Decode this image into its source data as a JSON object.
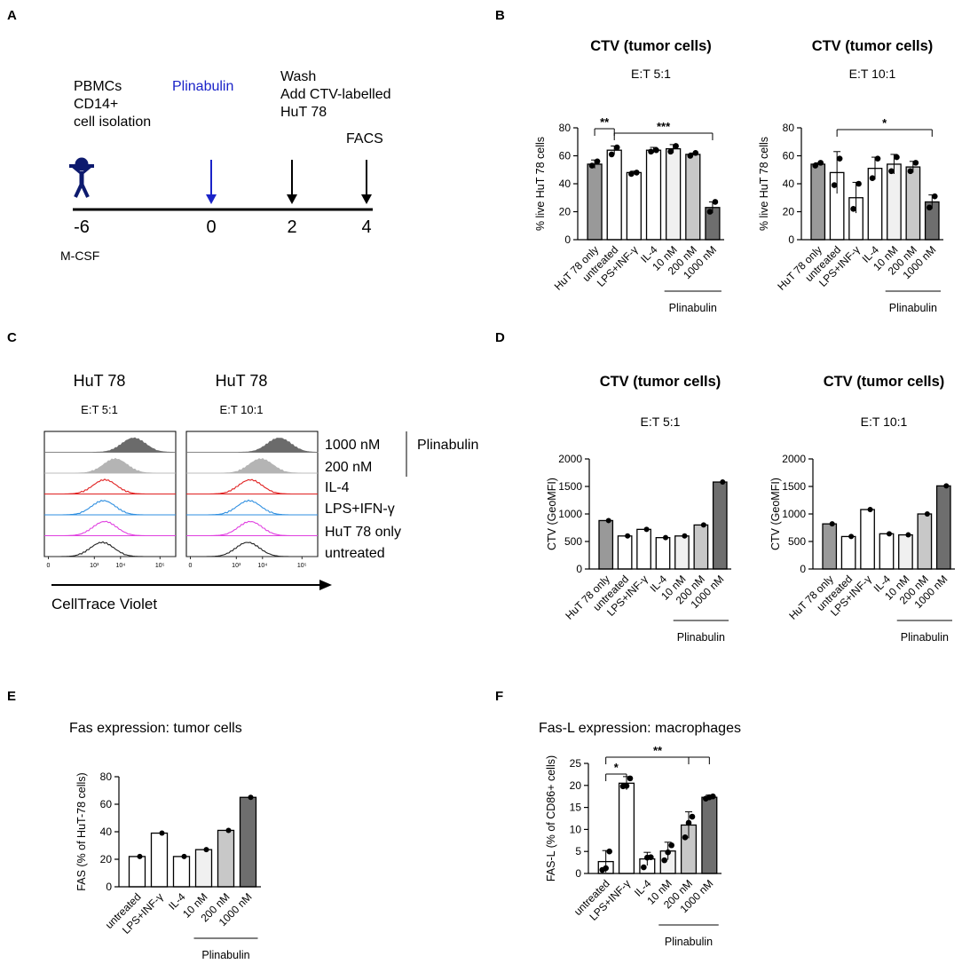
{
  "panels": {
    "A": {
      "letter": "A",
      "labels": {
        "step1": [
          "PBMCs",
          "CD14+",
          "cell isolation"
        ],
        "step2": "Plinabulin",
        "step3": [
          "Wash",
          "Add CTV-labelled",
          "HuT 78"
        ],
        "step4": "FACS",
        "mcsf": "M-CSF"
      },
      "timepoints": [
        "-6",
        "0",
        "2",
        "4"
      ],
      "colors": {
        "plinabulin": "#1a23c8",
        "person": "#0d1a6e"
      }
    },
    "B": {
      "letter": "B"
    },
    "C": {
      "letter": "C",
      "col_titles": [
        "HuT 78",
        "HuT 78"
      ],
      "ratios": [
        "E:T   5:1",
        "E:T   10:1"
      ],
      "legend": [
        "1000 nM",
        "200 nM",
        "IL-4",
        "LPS+IFN-γ",
        "HuT 78 only",
        "untreated"
      ],
      "legend_group": "Plinabulin",
      "xaxis_label": "CellTrace Violet",
      "tick_labels": [
        "0",
        "10³",
        "10⁴",
        "10⁵"
      ],
      "trace_colors": [
        "#6b6b6b",
        "#b4b4b4",
        "#e02020",
        "#2f8fe0",
        "#e040e0",
        "#222222"
      ]
    },
    "D": {
      "letter": "D"
    },
    "E": {
      "letter": "E"
    },
    "F": {
      "letter": "F"
    }
  },
  "chart_data": [
    {
      "id": "B1",
      "type": "bar",
      "title": "CTV (tumor cells)",
      "subtitle": "E:T   5:1",
      "ylabel": "% live HuT 78 cells",
      "xlabel": "",
      "categories": [
        "HuT 78 only",
        "untreated",
        "LPS+INF-γ",
        "IL-4",
        "10 nM",
        "200 nM",
        "1000 nM"
      ],
      "values": [
        54,
        64,
        48,
        64,
        65,
        61,
        23
      ],
      "errors": [
        3,
        3,
        1,
        2,
        3,
        1,
        4
      ],
      "points": [
        [
          53,
          56
        ],
        [
          61,
          66
        ],
        [
          47,
          48
        ],
        [
          63,
          64
        ],
        [
          63,
          67
        ],
        [
          60,
          62
        ],
        [
          20,
          27
        ]
      ],
      "fills": [
        "#999999",
        "#ffffff",
        "#ffffff",
        "#ffffff",
        "#f0f0f0",
        "#c8c8c8",
        "#6e6e6e"
      ],
      "ylim": [
        0,
        80
      ],
      "yticks": [
        0,
        20,
        40,
        60,
        80
      ],
      "group_label": "Plinabulin",
      "group_range": [
        4,
        6
      ],
      "sig": [
        {
          "from": 0,
          "to": 1,
          "label": "**"
        },
        {
          "from": 1,
          "to": 6,
          "label": "***"
        }
      ]
    },
    {
      "id": "B2",
      "type": "bar",
      "title": "CTV (tumor cells)",
      "subtitle": "E:T   10:1",
      "ylabel": "% live HuT 78 cells",
      "xlabel": "",
      "categories": [
        "HuT 78 only",
        "untreated",
        "LPS+INF-γ",
        "IL-4",
        "10 nM",
        "200 nM",
        "1000 nM"
      ],
      "values": [
        54,
        48,
        30,
        51,
        54,
        52,
        27
      ],
      "errors": [
        1,
        15,
        11,
        8,
        7,
        4,
        5
      ],
      "points": [
        [
          53,
          55
        ],
        [
          39,
          58
        ],
        [
          22,
          40
        ],
        [
          44,
          58
        ],
        [
          49,
          59
        ],
        [
          49,
          55
        ],
        [
          23,
          31
        ]
      ],
      "fills": [
        "#999999",
        "#ffffff",
        "#ffffff",
        "#ffffff",
        "#f0f0f0",
        "#c8c8c8",
        "#6e6e6e"
      ],
      "ylim": [
        0,
        80
      ],
      "yticks": [
        0,
        20,
        40,
        60,
        80
      ],
      "group_label": "Plinabulin",
      "group_range": [
        4,
        6
      ],
      "sig": [
        {
          "from": 1,
          "to": 6,
          "label": "*"
        }
      ]
    },
    {
      "id": "D1",
      "type": "bar",
      "title": "CTV (tumor cells)",
      "subtitle": "E:T   5:1",
      "ylabel": "CTV (GeoMFI)",
      "xlabel": "",
      "categories": [
        "HuT 78 only",
        "untreated",
        "LPS+INF-γ",
        "IL-4",
        "10 nM",
        "200 nM",
        "1000 nM"
      ],
      "values": [
        880,
        600,
        720,
        570,
        600,
        800,
        1580
      ],
      "fills": [
        "#999999",
        "#ffffff",
        "#ffffff",
        "#ffffff",
        "#f0f0f0",
        "#c8c8c8",
        "#6e6e6e"
      ],
      "ylim": [
        0,
        2000
      ],
      "yticks": [
        0,
        500,
        1000,
        1500,
        2000
      ],
      "group_label": "Plinabulin",
      "group_range": [
        4,
        6
      ]
    },
    {
      "id": "D2",
      "type": "bar",
      "title": "CTV (tumor cells)",
      "subtitle": "E:T   10:1",
      "ylabel": "CTV (GeoMFI)",
      "xlabel": "",
      "categories": [
        "HuT 78 only",
        "untreated",
        "LPS+INF-γ",
        "IL-4",
        "10 nM",
        "200 nM",
        "1000 nM"
      ],
      "values": [
        820,
        590,
        1080,
        640,
        620,
        1000,
        1510
      ],
      "fills": [
        "#999999",
        "#ffffff",
        "#ffffff",
        "#ffffff",
        "#f0f0f0",
        "#c8c8c8",
        "#6e6e6e"
      ],
      "ylim": [
        0,
        2000
      ],
      "yticks": [
        0,
        500,
        1000,
        1500,
        2000
      ],
      "group_label": "Plinabulin",
      "group_range": [
        4,
        6
      ]
    },
    {
      "id": "E",
      "type": "bar",
      "title": "Fas expression: tumor cells",
      "ylabel": "FAS (% of HuT-78 cells)",
      "xlabel": "",
      "categories": [
        "untreated",
        "LPS+INF-γ",
        "IL-4",
        "10 nM",
        "200 nM",
        "1000 nM"
      ],
      "values": [
        22,
        39,
        22,
        27,
        41,
        65
      ],
      "fills": [
        "#ffffff",
        "#ffffff",
        "#ffffff",
        "#f0f0f0",
        "#c8c8c8",
        "#6e6e6e"
      ],
      "ylim": [
        0,
        80
      ],
      "yticks": [
        0,
        20,
        40,
        60,
        80
      ],
      "group_label": "Plinabulin",
      "group_range": [
        3,
        5
      ]
    },
    {
      "id": "F",
      "type": "bar",
      "title": "Fas-L expression: macrophages",
      "ylabel": "FAS-L (% of CD86+ cells)",
      "xlabel": "",
      "categories": [
        "untreated",
        "LPS+INF-γ",
        "IL-4",
        "10 nM",
        "200 nM",
        "1000 nM"
      ],
      "values": [
        2.7,
        20.5,
        3.3,
        5.1,
        11,
        17.3
      ],
      "errors": [
        2.5,
        1.5,
        1.5,
        2,
        3,
        0.5
      ],
      "points": [
        [
          0.8,
          1.2,
          5
        ],
        [
          19.8,
          19.9,
          21.6
        ],
        [
          1.4,
          3.6,
          3.7
        ],
        [
          3,
          4.8,
          6.4
        ],
        [
          8.2,
          11.5,
          12.9
        ],
        [
          17,
          17.3,
          17.5
        ]
      ],
      "fills": [
        "#ffffff",
        "#ffffff",
        "#ffffff",
        "#f0f0f0",
        "#c8c8c8",
        "#6e6e6e"
      ],
      "ylim": [
        0,
        25
      ],
      "yticks": [
        0,
        5,
        10,
        15,
        20,
        25
      ],
      "group_label": "Plinabulin",
      "group_range": [
        3,
        5
      ],
      "sig": [
        {
          "from": 0,
          "to": 1,
          "label": "*"
        },
        {
          "from": 0,
          "to": [
            4,
            5
          ],
          "label": "**"
        }
      ]
    }
  ]
}
